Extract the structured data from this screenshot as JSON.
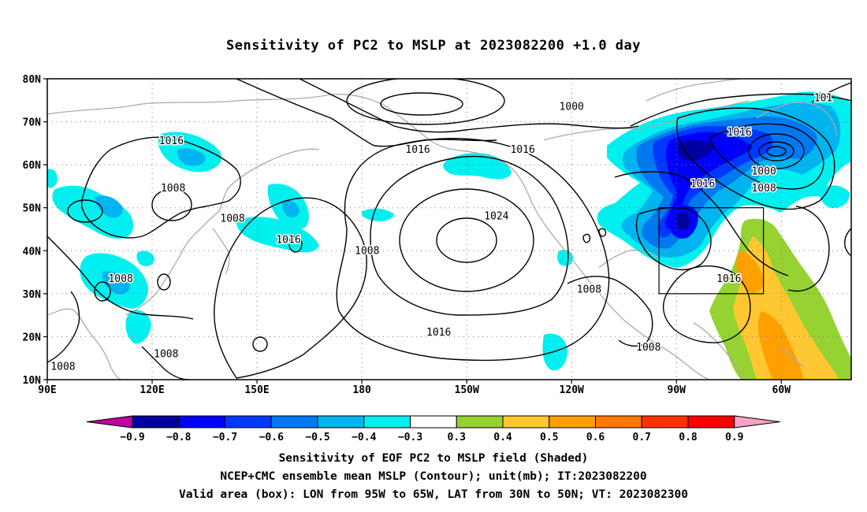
{
  "title": "Sensitivity of PC2 to MSLP at 2023082200 +1.0 day",
  "map": {
    "lat_labels": [
      "80N",
      "70N",
      "60N",
      "50N",
      "40N",
      "30N",
      "20N",
      "10N"
    ],
    "lon_labels": [
      "90E",
      "120E",
      "150E",
      "180",
      "150W",
      "120W",
      "90W",
      "60W"
    ],
    "contour_labels": [
      {
        "text": "1000",
        "lon": 240,
        "lat": 73.5
      },
      {
        "text": "1016",
        "lon": 288,
        "lat": 67.5
      },
      {
        "text": "1016",
        "lon": 196,
        "lat": 63.5
      },
      {
        "text": "1016",
        "lon": 226,
        "lat": 63.5
      },
      {
        "text": "1016",
        "lon": 125.5,
        "lat": 65.5
      },
      {
        "text": "1008",
        "lon": 126,
        "lat": 54.5
      },
      {
        "text": "1008",
        "lon": 143,
        "lat": 47.5
      },
      {
        "text": "1016",
        "lon": 159,
        "lat": 42.5
      },
      {
        "text": "1008",
        "lon": 181.5,
        "lat": 40.0
      },
      {
        "text": "1024",
        "lon": 218.5,
        "lat": 48.0
      },
      {
        "text": "1016",
        "lon": 277.5,
        "lat": 55.5
      },
      {
        "text": "1000",
        "lon": 295,
        "lat": 58.5
      },
      {
        "text": "1008",
        "lon": 295,
        "lat": 54.5
      },
      {
        "text": "1016",
        "lon": 285,
        "lat": 33.5
      },
      {
        "text": "1008",
        "lon": 245,
        "lat": 31.0
      },
      {
        "text": "1008",
        "lon": 111,
        "lat": 33.5
      },
      {
        "text": "1016",
        "lon": 202,
        "lat": 21.0
      },
      {
        "text": "1008",
        "lon": 262,
        "lat": 17.5
      },
      {
        "text": "1008",
        "lon": 124,
        "lat": 16.0
      },
      {
        "text": "1008",
        "lon": 94.5,
        "lat": 13.0
      },
      {
        "text": "101",
        "lon": 312,
        "lat": 75.5
      }
    ],
    "valid_box": {
      "lon_min": 265,
      "lon_max": 295,
      "lat_min": 30,
      "lat_max": 50
    }
  },
  "colorbar": {
    "labels": [
      "−0.9",
      "−0.8",
      "−0.7",
      "−0.6",
      "−0.5",
      "−0.4",
      "−0.3",
      "0.3",
      "0.4",
      "0.5",
      "0.6",
      "0.7",
      "0.8",
      "0.9"
    ],
    "colors": [
      "#0000a0",
      "#0000ff",
      "#0038ff",
      "#0078f0",
      "#00b4f0",
      "#00f0f0",
      "#ffffff",
      "#96d232",
      "#ffc832",
      "#ffa000",
      "#ff7800",
      "#ff3200",
      "#ff0000"
    ],
    "end_low": "#c000a0",
    "end_high": "#ffa0c8"
  },
  "captions": {
    "line1": "Sensitivity of EOF PC2 to MSLP field (Shaded)",
    "line2": "NCEP+CMC ensemble mean MSLP (Contour); unit(mb); IT:2023082200",
    "line3": "Valid area (box): LON from 95W to 65W, LAT from 30N to 50N; VT: 2023082300"
  }
}
